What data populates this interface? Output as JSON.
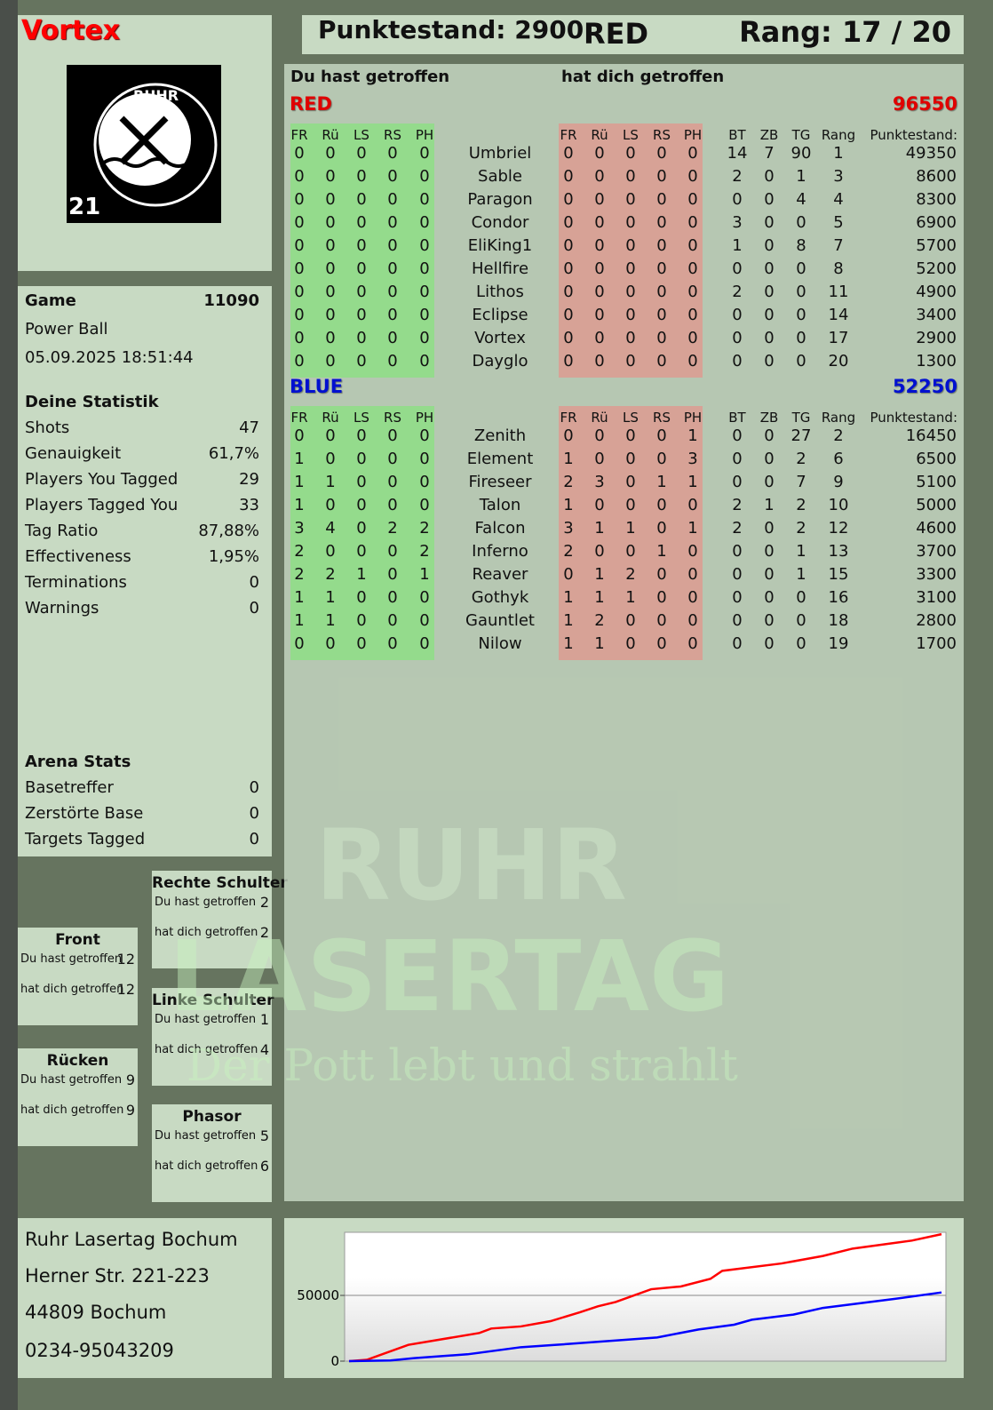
{
  "player": {
    "name": "Vortex",
    "logo_text": "RUHR LASERTAG",
    "logo_number": "21"
  },
  "header": {
    "score_label": "Punktestand: 2900",
    "team": "RED",
    "rank_label": "Rang: 17 / 20"
  },
  "game": {
    "label": "Game",
    "id": "11090",
    "mode": "Power Ball",
    "datetime": "05.09.2025 18:51:44"
  },
  "stats": {
    "title": "Deine Statistik",
    "items": [
      {
        "label": "Shots",
        "value": "47"
      },
      {
        "label": "Genauigkeit",
        "value": "61,7%"
      },
      {
        "label": "Players You Tagged",
        "value": "29"
      },
      {
        "label": "Players Tagged You",
        "value": "33"
      },
      {
        "label": "Tag Ratio",
        "value": "87,88%"
      },
      {
        "label": "Effectiveness",
        "value": "1,95%"
      },
      {
        "label": "Terminations",
        "value": "0"
      },
      {
        "label": "Warnings",
        "value": "0"
      }
    ]
  },
  "arena": {
    "title": "Arena Stats",
    "items": [
      {
        "label": "Basetreffer",
        "value": "0"
      },
      {
        "label": "Zerstörte Base",
        "value": "0"
      },
      {
        "label": "Targets Tagged",
        "value": "0"
      }
    ]
  },
  "zones": [
    {
      "title": "Rechte Schulter",
      "hit_label": "Du hast getroffen",
      "hit": "2",
      "got_label": "hat dich getroffen",
      "got": "2"
    },
    {
      "title": "Front",
      "hit_label": "Du hast getroffen",
      "hit": "12",
      "got_label": "hat dich getroffen",
      "got": "12"
    },
    {
      "title": "Linke Schulter",
      "hit_label": "Du hast getroffen",
      "hit": "1",
      "got_label": "hat dich getroffen",
      "got": "4"
    },
    {
      "title": "Rücken",
      "hit_label": "Du hast getroffen",
      "hit": "9",
      "got_label": "hat dich getroffen",
      "got": "9"
    },
    {
      "title": "Phasor",
      "hit_label": "Du hast getroffen",
      "hit": "5",
      "got_label": "hat dich getroffen",
      "got": "6"
    }
  ],
  "address": {
    "line1": "Ruhr Lasertag Bochum",
    "line2": "Herner Str. 221-223",
    "line3": "44809 Bochum",
    "line4": "0234-95043209"
  },
  "main": {
    "hit_header": "Du hast getroffen",
    "got_header": "hat dich getroffen",
    "columns": {
      "zones": [
        "FR",
        "Rü",
        "LS",
        "RS",
        "PH"
      ],
      "extra": [
        "BT",
        "ZB",
        "TG",
        "Rang"
      ],
      "score": "Punktestand:"
    },
    "teams": [
      {
        "name": "RED",
        "total": "96550",
        "color": "#e00000",
        "players": [
          {
            "name": "Umbriel",
            "hit": [
              0,
              0,
              0,
              0,
              0
            ],
            "got": [
              0,
              0,
              0,
              0,
              0
            ],
            "bt": 14,
            "zb": 7,
            "tg": 90,
            "rang": 1,
            "score": 49350
          },
          {
            "name": "Sable",
            "hit": [
              0,
              0,
              0,
              0,
              0
            ],
            "got": [
              0,
              0,
              0,
              0,
              0
            ],
            "bt": 2,
            "zb": 0,
            "tg": 1,
            "rang": 3,
            "score": 8600
          },
          {
            "name": "Paragon",
            "hit": [
              0,
              0,
              0,
              0,
              0
            ],
            "got": [
              0,
              0,
              0,
              0,
              0
            ],
            "bt": 0,
            "zb": 0,
            "tg": 4,
            "rang": 4,
            "score": 8300
          },
          {
            "name": "Condor",
            "hit": [
              0,
              0,
              0,
              0,
              0
            ],
            "got": [
              0,
              0,
              0,
              0,
              0
            ],
            "bt": 3,
            "zb": 0,
            "tg": 0,
            "rang": 5,
            "score": 6900
          },
          {
            "name": "EliKing1",
            "hit": [
              0,
              0,
              0,
              0,
              0
            ],
            "got": [
              0,
              0,
              0,
              0,
              0
            ],
            "bt": 1,
            "zb": 0,
            "tg": 8,
            "rang": 7,
            "score": 5700
          },
          {
            "name": "Hellfire",
            "hit": [
              0,
              0,
              0,
              0,
              0
            ],
            "got": [
              0,
              0,
              0,
              0,
              0
            ],
            "bt": 0,
            "zb": 0,
            "tg": 0,
            "rang": 8,
            "score": 5200
          },
          {
            "name": "Lithos",
            "hit": [
              0,
              0,
              0,
              0,
              0
            ],
            "got": [
              0,
              0,
              0,
              0,
              0
            ],
            "bt": 2,
            "zb": 0,
            "tg": 0,
            "rang": 11,
            "score": 4900
          },
          {
            "name": "Eclipse",
            "hit": [
              0,
              0,
              0,
              0,
              0
            ],
            "got": [
              0,
              0,
              0,
              0,
              0
            ],
            "bt": 0,
            "zb": 0,
            "tg": 0,
            "rang": 14,
            "score": 3400
          },
          {
            "name": "Vortex",
            "hit": [
              0,
              0,
              0,
              0,
              0
            ],
            "got": [
              0,
              0,
              0,
              0,
              0
            ],
            "bt": 0,
            "zb": 0,
            "tg": 0,
            "rang": 17,
            "score": 2900
          },
          {
            "name": "Dayglo",
            "hit": [
              0,
              0,
              0,
              0,
              0
            ],
            "got": [
              0,
              0,
              0,
              0,
              0
            ],
            "bt": 0,
            "zb": 0,
            "tg": 0,
            "rang": 20,
            "score": 1300
          }
        ]
      },
      {
        "name": "BLUE",
        "total": "52250",
        "color": "#0010d0",
        "players": [
          {
            "name": "Zenith",
            "hit": [
              0,
              0,
              0,
              0,
              0
            ],
            "got": [
              0,
              0,
              0,
              0,
              1
            ],
            "bt": 0,
            "zb": 0,
            "tg": 27,
            "rang": 2,
            "score": 16450
          },
          {
            "name": "Element",
            "hit": [
              1,
              0,
              0,
              0,
              0
            ],
            "got": [
              1,
              0,
              0,
              0,
              3
            ],
            "bt": 0,
            "zb": 0,
            "tg": 2,
            "rang": 6,
            "score": 6500
          },
          {
            "name": "Fireseer",
            "hit": [
              1,
              1,
              0,
              0,
              0
            ],
            "got": [
              2,
              3,
              0,
              1,
              1
            ],
            "bt": 0,
            "zb": 0,
            "tg": 7,
            "rang": 9,
            "score": 5100
          },
          {
            "name": "Talon",
            "hit": [
              1,
              0,
              0,
              0,
              0
            ],
            "got": [
              1,
              0,
              0,
              0,
              0
            ],
            "bt": 2,
            "zb": 1,
            "tg": 2,
            "rang": 10,
            "score": 5000
          },
          {
            "name": "Falcon",
            "hit": [
              3,
              4,
              0,
              2,
              2
            ],
            "got": [
              3,
              1,
              1,
              0,
              1
            ],
            "bt": 2,
            "zb": 0,
            "tg": 2,
            "rang": 12,
            "score": 4600
          },
          {
            "name": "Inferno",
            "hit": [
              2,
              0,
              0,
              0,
              2
            ],
            "got": [
              2,
              0,
              0,
              1,
              0
            ],
            "bt": 0,
            "zb": 0,
            "tg": 1,
            "rang": 13,
            "score": 3700
          },
          {
            "name": "Reaver",
            "hit": [
              2,
              2,
              1,
              0,
              1
            ],
            "got": [
              0,
              1,
              2,
              0,
              0
            ],
            "bt": 0,
            "zb": 0,
            "tg": 1,
            "rang": 15,
            "score": 3300
          },
          {
            "name": "Gothyk",
            "hit": [
              1,
              1,
              0,
              0,
              0
            ],
            "got": [
              1,
              1,
              1,
              0,
              0
            ],
            "bt": 0,
            "zb": 0,
            "tg": 0,
            "rang": 16,
            "score": 3100
          },
          {
            "name": "Gauntlet",
            "hit": [
              1,
              1,
              0,
              0,
              0
            ],
            "got": [
              1,
              2,
              0,
              0,
              0
            ],
            "bt": 0,
            "zb": 0,
            "tg": 0,
            "rang": 18,
            "score": 2800
          },
          {
            "name": "Nilow",
            "hit": [
              0,
              0,
              0,
              0,
              0
            ],
            "got": [
              1,
              1,
              0,
              0,
              0
            ],
            "bt": 0,
            "zb": 0,
            "tg": 0,
            "rang": 19,
            "score": 1700
          }
        ]
      }
    ]
  },
  "watermark": {
    "line1": "RUHR",
    "line2": "LASERTAG",
    "slogan": "Der Pott lebt und strahlt"
  },
  "chart_data": {
    "type": "line",
    "ylim": [
      0,
      98000
    ],
    "yticks": [
      "0",
      "50000"
    ],
    "grid": true,
    "series": [
      {
        "color": "#ff0000",
        "x": [
          0,
          0.03,
          0.1,
          0.22,
          0.24,
          0.29,
          0.34,
          0.39,
          0.42,
          0.45,
          0.51,
          0.56,
          0.61,
          0.63,
          0.73,
          0.8,
          0.85,
          0.95,
          1.0
        ],
        "y": [
          0,
          1000,
          12400,
          21400,
          24800,
          26400,
          30400,
          37200,
          41700,
          45000,
          54700,
          56800,
          62600,
          68700,
          74300,
          80000,
          85600,
          91700,
          96550
        ]
      },
      {
        "color": "#0000ff",
        "x": [
          0,
          0.07,
          0.11,
          0.2,
          0.29,
          0.35,
          0.52,
          0.59,
          0.65,
          0.68,
          0.75,
          0.8,
          0.92,
          1.0
        ],
        "y": [
          0,
          500,
          2300,
          5200,
          10600,
          12400,
          18000,
          24100,
          27700,
          31500,
          35400,
          40500,
          47300,
          52250
        ]
      }
    ]
  }
}
